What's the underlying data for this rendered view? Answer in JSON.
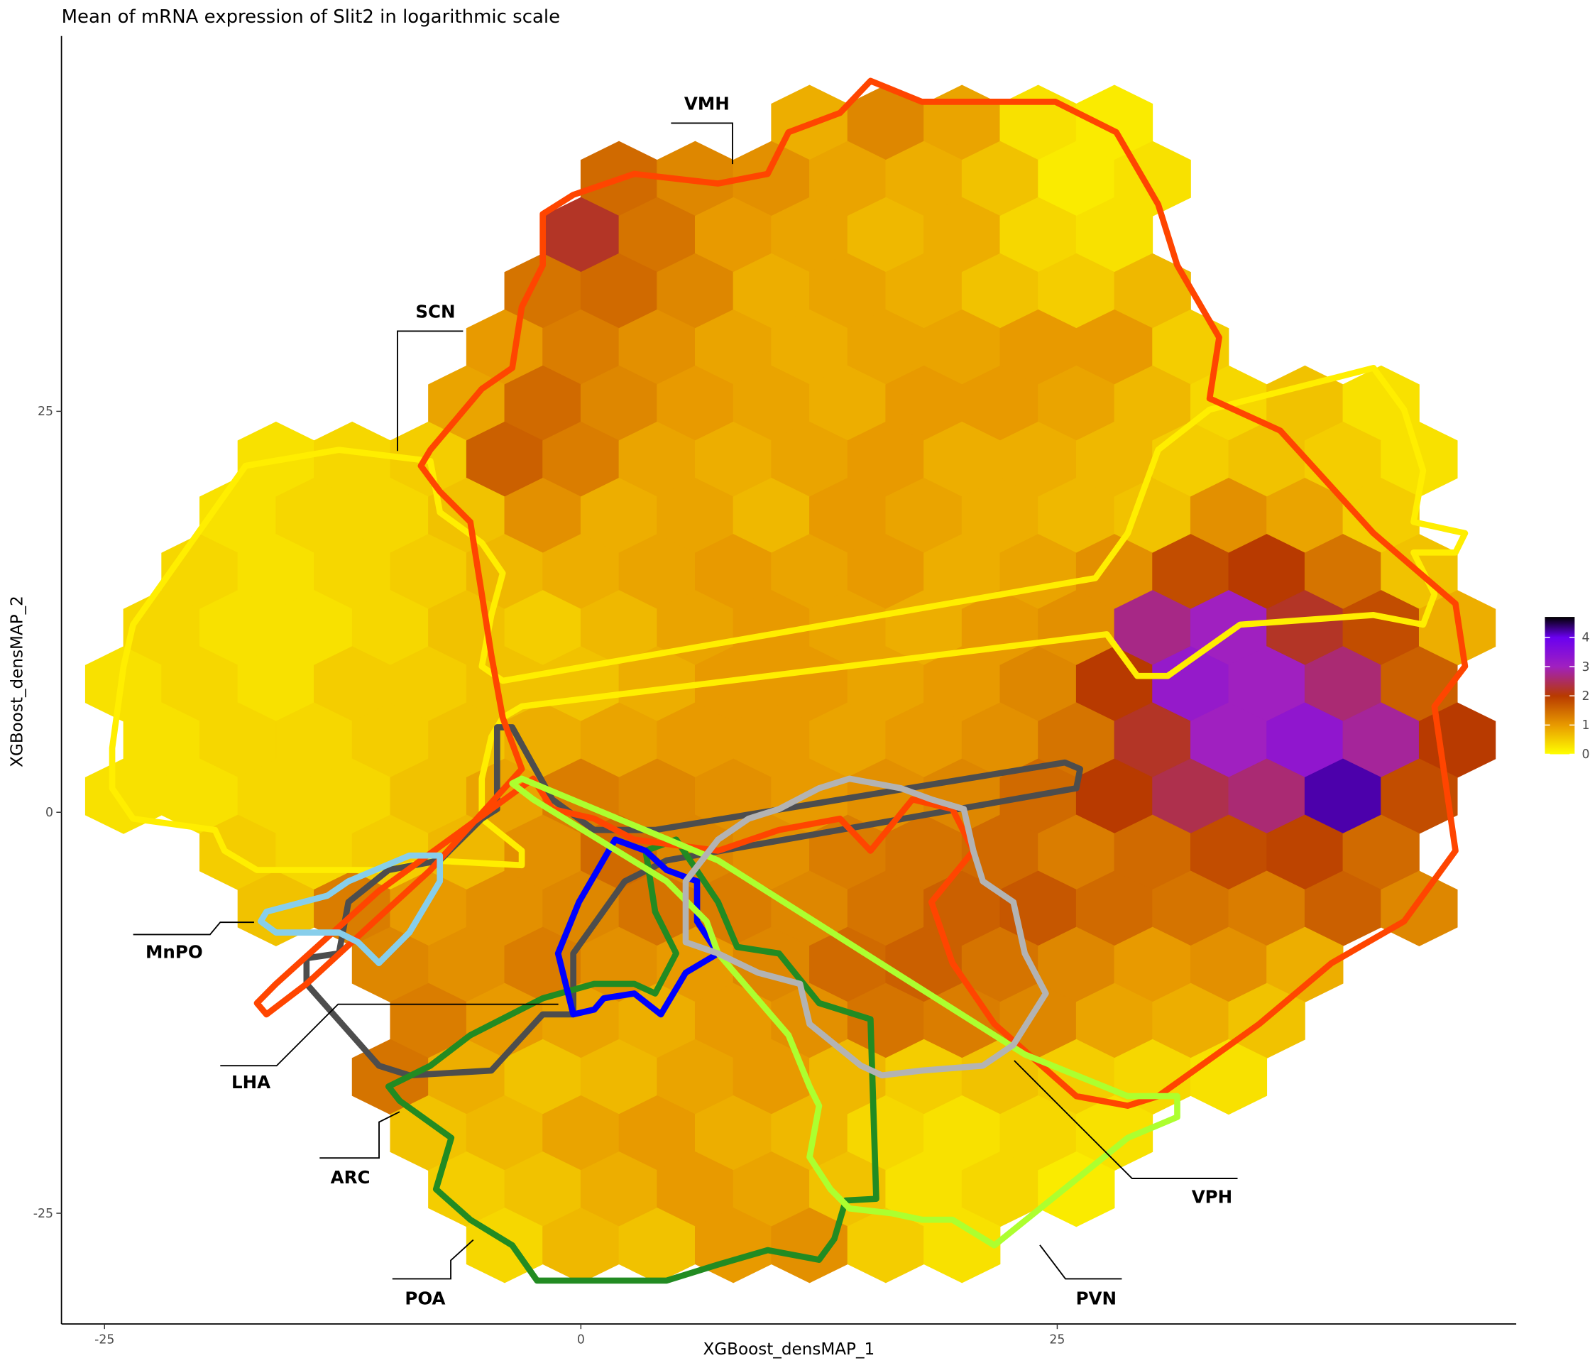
{
  "chart_data": {
    "type": "hexbin",
    "title": "Mean of mRNA expression of Slit2 in logarithmic scale",
    "x_label": "XGBoost_densMAP_1",
    "y_label": "XGBoost_densMAP_2",
    "xlim": [
      -27.26,
      49.09
    ],
    "ylim": [
      -31.9,
      48.4
    ],
    "xticks": [
      -25,
      0,
      25
    ],
    "yticks": [
      -25,
      0,
      25
    ],
    "clim": [
      0,
      4.7
    ],
    "colorbar_ticks": [
      0,
      1,
      2,
      3,
      4
    ],
    "colorscale": [
      [
        0,
        "#ffff00"
      ],
      [
        1,
        "#e89a00"
      ],
      [
        2,
        "#b83a00"
      ],
      [
        3,
        "#a020c0"
      ],
      [
        4,
        "#6a00f0"
      ],
      [
        4.7,
        "#000000"
      ]
    ],
    "hexes": [
      {
        "y": 43,
        "x": [
          12,
          16,
          20,
          24,
          28
        ],
        "values": [
          0.8,
          1.2,
          0.9,
          0.3,
          0.2
        ]
      },
      {
        "y": 39.5,
        "x": [
          2,
          6,
          10,
          14,
          18,
          22,
          26,
          30
        ],
        "values": [
          1.5,
          1.2,
          1.1,
          0.9,
          0.8,
          0.6,
          0.2,
          0.3
        ]
      },
      {
        "y": 36,
        "x": [
          0,
          4,
          8,
          12,
          16,
          20,
          24,
          28
        ],
        "values": [
          2.2,
          1.4,
          1.0,
          0.9,
          0.7,
          0.8,
          0.4,
          0.3
        ]
      },
      {
        "y": 32.5,
        "x": [
          -2,
          2,
          6,
          10,
          14,
          18,
          22,
          26,
          30
        ],
        "values": [
          1.4,
          1.5,
          1.2,
          0.8,
          0.9,
          0.8,
          0.6,
          0.5,
          0.7
        ]
      },
      {
        "y": 29,
        "x": [
          -4,
          0,
          4,
          8,
          12,
          16,
          20,
          24,
          28,
          32
        ],
        "values": [
          1.0,
          1.3,
          1.1,
          0.9,
          0.8,
          0.9,
          0.9,
          1.0,
          1.0,
          0.5
        ]
      },
      {
        "y": 25.5,
        "x": [
          -6,
          -2,
          2,
          6,
          10,
          14,
          18,
          22,
          26,
          30,
          34,
          38,
          42
        ],
        "values": [
          0.9,
          1.5,
          1.2,
          1.0,
          0.9,
          0.8,
          1.0,
          1.0,
          0.9,
          0.7,
          0.4,
          0.6,
          0.3
        ]
      },
      {
        "y": 22,
        "x": [
          -16,
          -12,
          -8,
          -4,
          0,
          4,
          8,
          12,
          16,
          20,
          24,
          28,
          32,
          36,
          40,
          44
        ],
        "values": [
          0.3,
          0.4,
          0.5,
          1.6,
          1.3,
          0.9,
          0.8,
          0.9,
          1.0,
          0.8,
          0.8,
          0.7,
          0.5,
          0.6,
          0.5,
          0.3
        ]
      },
      {
        "y": 18.5,
        "x": [
          -18,
          -14,
          -10,
          -6,
          -2,
          2,
          6,
          10,
          14,
          18,
          22,
          26,
          30,
          34,
          38,
          42
        ],
        "values": [
          0.3,
          0.4,
          0.4,
          0.6,
          1.1,
          0.8,
          0.9,
          0.7,
          1.0,
          0.9,
          0.8,
          0.7,
          0.6,
          1.1,
          0.9,
          0.5
        ]
      },
      {
        "y": 15,
        "x": [
          -20,
          -16,
          -12,
          -8,
          -4,
          0,
          4,
          8,
          12,
          16,
          20,
          24,
          28,
          32,
          36,
          40,
          44
        ],
        "values": [
          0.4,
          0.3,
          0.4,
          0.5,
          0.7,
          0.8,
          0.9,
          1.0,
          0.9,
          1.0,
          0.8,
          0.9,
          1.1,
          1.8,
          2.0,
          1.4,
          0.6
        ]
      },
      {
        "y": 11.5,
        "x": [
          -22,
          -18,
          -14,
          -10,
          -6,
          -2,
          2,
          6,
          10,
          14,
          18,
          22,
          26,
          30,
          34,
          38,
          42,
          46
        ],
        "values": [
          0.4,
          0.3,
          0.3,
          0.4,
          0.6,
          0.5,
          0.7,
          0.9,
          1.0,
          0.9,
          0.8,
          1.0,
          1.1,
          2.7,
          3.0,
          2.2,
          1.8,
          0.8
        ]
      },
      {
        "y": 8,
        "x": [
          -24,
          -20,
          -16,
          -12,
          -8,
          -4,
          0,
          4,
          8,
          12,
          16,
          20,
          24,
          28,
          32,
          36,
          40,
          44
        ],
        "values": [
          0.3,
          0.4,
          0.3,
          0.5,
          0.5,
          0.6,
          0.6,
          0.8,
          1.0,
          1.0,
          0.9,
          1.0,
          1.2,
          2.0,
          3.2,
          3.0,
          2.6,
          1.6
        ]
      },
      {
        "y": 4.5,
        "x": [
          -22,
          -18,
          -14,
          -10,
          -6,
          -2,
          2,
          6,
          10,
          14,
          18,
          22,
          26,
          30,
          34,
          38,
          42,
          46
        ],
        "values": [
          0.3,
          0.4,
          0.4,
          0.5,
          0.6,
          0.8,
          0.9,
          1.0,
          1.0,
          0.9,
          1.0,
          1.1,
          1.4,
          2.2,
          3.0,
          3.3,
          2.8,
          2.0
        ]
      },
      {
        "y": 1,
        "x": [
          -24,
          -20,
          -16,
          -12,
          -8,
          -4,
          0,
          4,
          8,
          12,
          16,
          20,
          24,
          28,
          32,
          36,
          40,
          44
        ],
        "values": [
          0.3,
          0.3,
          0.4,
          0.4,
          0.6,
          0.9,
          1.3,
          1.2,
          1.1,
          1.0,
          1.1,
          1.2,
          1.5,
          2.0,
          2.4,
          2.6,
          4.2,
          1.8
        ]
      },
      {
        "y": -2.5,
        "x": [
          -18,
          -14,
          -10,
          -6,
          -2,
          2,
          6,
          10,
          14,
          18,
          22,
          26,
          30,
          34,
          38,
          42
        ],
        "values": [
          0.5,
          0.4,
          0.5,
          0.7,
          1.1,
          1.5,
          1.2,
          1.1,
          1.3,
          1.4,
          1.5,
          1.3,
          1.5,
          1.8,
          1.9,
          1.5
        ]
      },
      {
        "y": -6,
        "x": [
          -16,
          -12,
          -8,
          -4,
          0,
          4,
          8,
          12,
          16,
          20,
          24,
          28,
          32,
          36,
          40,
          44
        ],
        "values": [
          0.6,
          1.3,
          1.0,
          1.1,
          1.2,
          1.4,
          1.3,
          1.2,
          1.4,
          1.6,
          1.7,
          1.5,
          1.4,
          1.3,
          1.6,
          1.2
        ]
      },
      {
        "y": -9.5,
        "x": [
          -10,
          -6,
          -2,
          2,
          6,
          10,
          14,
          18,
          22,
          26,
          30,
          34,
          38
        ],
        "values": [
          1.2,
          1.1,
          1.3,
          1.1,
          1.0,
          1.2,
          1.5,
          1.6,
          1.4,
          1.2,
          1.0,
          1.1,
          0.8
        ]
      },
      {
        "y": -13,
        "x": [
          -8,
          -4,
          0,
          4,
          8,
          12,
          16,
          20,
          24,
          28,
          32,
          36
        ],
        "values": [
          1.3,
          1.0,
          0.9,
          0.8,
          1.0,
          1.1,
          1.4,
          1.3,
          1.2,
          0.9,
          0.8,
          0.6
        ]
      },
      {
        "y": -16.5,
        "x": [
          -10,
          -6,
          -2,
          2,
          6,
          10,
          14,
          18,
          22,
          26,
          30,
          34
        ],
        "values": [
          1.4,
          0.8,
          0.6,
          0.7,
          0.9,
          1.0,
          0.7,
          0.5,
          0.6,
          0.5,
          0.4,
          0.3
        ]
      },
      {
        "y": -20,
        "x": [
          -8,
          -4,
          0,
          4,
          8,
          12,
          16,
          20,
          24,
          28
        ],
        "values": [
          0.6,
          0.7,
          0.9,
          1.0,
          0.8,
          0.7,
          0.4,
          0.3,
          0.4,
          0.3
        ]
      },
      {
        "y": -23.5,
        "x": [
          -6,
          -2,
          2,
          6,
          10,
          14,
          18,
          22,
          26
        ],
        "values": [
          0.5,
          0.6,
          0.8,
          1.0,
          0.9,
          0.6,
          0.3,
          0.4,
          0.2
        ]
      },
      {
        "y": -27,
        "x": [
          -4,
          0,
          4,
          8,
          12,
          16,
          20
        ],
        "values": [
          0.4,
          0.7,
          0.6,
          1.0,
          1.1,
          0.5,
          0.3
        ]
      }
    ],
    "regions": [
      {
        "name": "SCN",
        "color": "#ffee00",
        "x": [
          -24.6,
          -24.6,
          -24.0,
          -23.5,
          -17.6,
          -12.7,
          -7.9,
          -7.4,
          -5.2,
          -4.1,
          -4.7,
          -5.2,
          -4.1,
          27.0,
          28.7,
          30.3,
          33.0,
          41.6,
          43.2,
          44.2,
          43.7,
          46.4,
          45.9,
          43.7,
          44.8,
          44.2,
          41.6,
          34.6,
          30.8,
          29.2,
          27.6,
          -3.1,
          -4.1,
          -4.7,
          -5.2,
          -5.2,
          -3.1,
          -3.1,
          -7.9,
          -10.1,
          -17.0,
          -18.7,
          -19.2,
          -23.5
        ],
        "y": [
          1.5,
          4.0,
          9.1,
          11.7,
          21.6,
          22.6,
          21.9,
          18.7,
          16.8,
          14.9,
          12.3,
          9.1,
          8.2,
          14.6,
          17.4,
          22.6,
          25.1,
          27.7,
          25.1,
          21.3,
          18.1,
          17.4,
          16.2,
          16.2,
          13.6,
          11.7,
          12.3,
          11.7,
          8.5,
          8.5,
          11.1,
          6.6,
          5.9,
          4.7,
          2.1,
          -0.4,
          -2.4,
          -3.3,
          -3.0,
          -3.6,
          -3.6,
          -2.4,
          -1.1,
          -0.4
        ]
      },
      {
        "name": "LHA",
        "color": "#4d4d4d",
        "x": [
          -4.4,
          -4.4,
          -5.2,
          -7.4,
          -10.1,
          -12.2,
          -12.7,
          -14.4,
          -14.4,
          -10.6,
          -9.0,
          -4.7,
          -2.0,
          -0.4,
          -0.4,
          2.3,
          4.5,
          26.0,
          26.2,
          25.4,
          3.9,
          0.7,
          -1.5,
          -3.6
        ],
        "y": [
          5.3,
          0.2,
          -0.4,
          -3.0,
          -3.6,
          -5.6,
          -8.8,
          -9.1,
          -10.7,
          -15.8,
          -16.4,
          -16.1,
          -12.6,
          -12.6,
          -8.8,
          -4.3,
          -3.0,
          1.5,
          2.7,
          3.1,
          -1.1,
          -1.1,
          0.8,
          5.3
        ]
      },
      {
        "name": "POA",
        "color": "#228b22",
        "x": [
          -10.1,
          -9.5,
          -6.8,
          -7.6,
          -5.8,
          -3.6,
          -2.3,
          4.5,
          7.2,
          9.8,
          12.5,
          13.3,
          13.9,
          15.5,
          15.2,
          12.5,
          10.4,
          8.2,
          7.2,
          5.0,
          3.4,
          3.9,
          5.0,
          3.9,
          2.8,
          0.7,
          -2.0,
          -5.8,
          -7.9
        ],
        "y": [
          -17.1,
          -18.0,
          -20.3,
          -23.5,
          -25.4,
          -27.0,
          -29.2,
          -29.2,
          -28.2,
          -27.3,
          -27.9,
          -26.6,
          -24.2,
          -24.1,
          -12.9,
          -11.9,
          -8.8,
          -8.4,
          -5.6,
          -1.7,
          -2.4,
          -6.2,
          -8.8,
          -11.3,
          -10.7,
          -10.7,
          -11.6,
          -13.9,
          -15.8
        ]
      },
      {
        "name": "ARC",
        "color": "#0000ff",
        "x": [
          -0.4,
          -1.2,
          -0.1,
          1.8,
          3.4,
          4.5,
          6.1,
          6.1,
          7.2,
          5.5,
          4.2,
          2.8,
          1.2,
          0.7
        ],
        "y": [
          -12.6,
          -8.8,
          -5.6,
          -1.7,
          -2.4,
          -3.6,
          -4.3,
          -6.8,
          -8.8,
          -10.0,
          -12.6,
          -11.3,
          -11.6,
          -12.3
        ]
      },
      {
        "name": "VMH",
        "color": "#ff4500",
        "x": [
          -8.4,
          -7.9,
          -5.2,
          -3.6,
          -3.1,
          -2.0,
          -2.0,
          -0.4,
          2.8,
          7.2,
          9.8,
          10.9,
          13.6,
          15.2,
          17.9,
          22.2,
          24.9,
          28.1,
          30.3,
          31.3,
          33.5,
          33.0,
          36.7,
          41.6,
          45.9,
          46.4,
          44.8,
          45.9,
          43.2,
          39.4,
          35.6,
          30.3,
          28.7,
          26.0,
          21.7,
          19.5,
          18.4,
          20.6,
          19.5,
          17.4,
          15.2,
          13.6,
          10.4,
          7.2,
          2.8,
          0.7,
          -1.5,
          -2.5,
          -10.6,
          -16.0,
          -17.0,
          -16.5,
          -14.4,
          -7.9,
          -3.1,
          -4.1,
          -4.7,
          -5.2,
          -5.8,
          -7.4
        ],
        "y": [
          21.6,
          22.6,
          26.4,
          27.7,
          31.5,
          34.1,
          37.3,
          38.5,
          39.8,
          39.2,
          39.8,
          42.4,
          43.6,
          45.6,
          44.3,
          44.3,
          44.3,
          42.4,
          37.9,
          34.1,
          29.6,
          25.8,
          23.8,
          17.4,
          13.0,
          9.1,
          6.6,
          -2.4,
          -6.8,
          -9.4,
          -13.2,
          -17.7,
          -18.3,
          -17.7,
          -13.2,
          -9.4,
          -5.6,
          -2.4,
          0.2,
          0.8,
          -2.4,
          -0.4,
          -1.1,
          -2.4,
          -1.7,
          -0.4,
          0.2,
          2.1,
          -4.9,
          -10.7,
          -11.9,
          -12.6,
          -10.7,
          -3.6,
          2.7,
          5.9,
          9.8,
          13.6,
          18.1,
          20.0
        ]
      },
      {
        "name": "MnPO",
        "color": "#87ceeb",
        "x": [
          -16.5,
          -13.3,
          -12.2,
          -9.0,
          -7.4,
          -7.4,
          -9.0,
          -10.6,
          -11.7,
          -12.7,
          -16.0,
          -16.8
        ],
        "y": [
          -6.2,
          -5.2,
          -4.3,
          -2.7,
          -2.7,
          -4.3,
          -7.5,
          -9.4,
          -8.1,
          -7.5,
          -7.5,
          -6.8
        ]
      },
      {
        "name": "PVN",
        "color": "#adff2f",
        "x": [
          -3.6,
          -3.1,
          7.2,
          23.3,
          28.7,
          31.3,
          31.3,
          28.7,
          21.7,
          19.5,
          17.9,
          16.3,
          14.1,
          13.1,
          12.0,
          12.5,
          12.0,
          10.9,
          7.2,
          6.6,
          4.5,
          -2.5
        ],
        "y": [
          1.8,
          2.1,
          -3.0,
          -15.1,
          -17.7,
          -17.7,
          -19.0,
          -20.3,
          -27.0,
          -25.4,
          -25.4,
          -25.0,
          -24.7,
          -23.5,
          -21.5,
          -18.3,
          -17.1,
          -13.9,
          -8.8,
          -6.8,
          -4.3,
          0.8
        ]
      },
      {
        "name": "VPH",
        "color": "#b3b3b3",
        "x": [
          5.5,
          7.2,
          9.3,
          11.5,
          12.0,
          14.7,
          15.8,
          17.9,
          21.1,
          22.7,
          24.4,
          23.3,
          22.7,
          21.1,
          20.6,
          20.1,
          18.4,
          16.8,
          14.1,
          12.5,
          10.4,
          8.8,
          7.2,
          5.5,
          5.5
        ],
        "y": [
          -8.1,
          -8.8,
          -10.0,
          -10.7,
          -13.2,
          -15.8,
          -16.4,
          -16.1,
          -15.8,
          -14.5,
          -11.3,
          -8.8,
          -5.6,
          -4.3,
          -2.4,
          0.2,
          0.8,
          1.5,
          2.1,
          1.5,
          0.2,
          -0.4,
          -1.7,
          -4.3,
          -6.8
        ]
      }
    ]
  }
}
